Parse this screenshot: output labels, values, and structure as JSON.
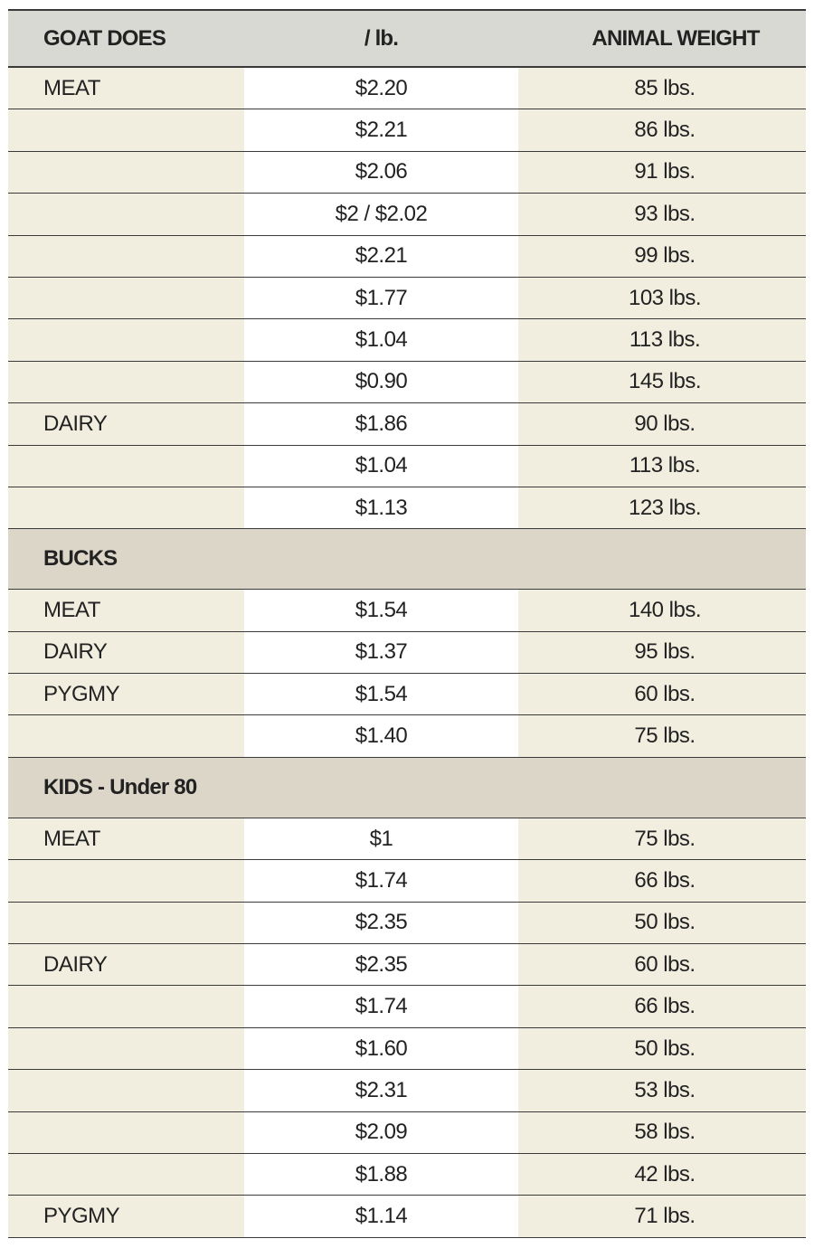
{
  "header": {
    "col1": "GOAT DOES",
    "col2": "/ lb.",
    "col3": "ANIMAL WEIGHT"
  },
  "sections": [
    {
      "title": "",
      "rows": [
        {
          "category": "MEAT",
          "price": "$2.20",
          "weight": "85 lbs."
        },
        {
          "category": "",
          "price": "$2.21",
          "weight": "86 lbs."
        },
        {
          "category": "",
          "price": "$2.06",
          "weight": "91 lbs."
        },
        {
          "category": "",
          "price": "$2 / $2.02",
          "weight": "93 lbs."
        },
        {
          "category": "",
          "price": "$2.21",
          "weight": "99 lbs."
        },
        {
          "category": "",
          "price": "$1.77",
          "weight": "103 lbs."
        },
        {
          "category": "",
          "price": "$1.04",
          "weight": "113 lbs."
        },
        {
          "category": "",
          "price": "$0.90",
          "weight": "145 lbs."
        },
        {
          "category": "DAIRY",
          "price": "$1.86",
          "weight": "90 lbs."
        },
        {
          "category": "",
          "price": "$1.04",
          "weight": "113 lbs."
        },
        {
          "category": "",
          "price": "$1.13",
          "weight": "123 lbs."
        }
      ]
    },
    {
      "title": "BUCKS",
      "rows": [
        {
          "category": "MEAT",
          "price": "$1.54",
          "weight": "140 lbs."
        },
        {
          "category": "DAIRY",
          "price": "$1.37",
          "weight": "95 lbs."
        },
        {
          "category": "PYGMY",
          "price": "$1.54",
          "weight": "60 lbs."
        },
        {
          "category": "",
          "price": "$1.40",
          "weight": "75 lbs."
        }
      ]
    },
    {
      "title": "KIDS - Under 80",
      "rows": [
        {
          "category": "MEAT",
          "price": "$1",
          "weight": "75 lbs."
        },
        {
          "category": "",
          "price": "$1.74",
          "weight": "66 lbs."
        },
        {
          "category": "",
          "price": "$2.35",
          "weight": "50 lbs."
        },
        {
          "category": "DAIRY",
          "price": "$2.35",
          "weight": "60 lbs."
        },
        {
          "category": "",
          "price": "$1.74",
          "weight": "66 lbs."
        },
        {
          "category": "",
          "price": "$1.60",
          "weight": "50 lbs."
        },
        {
          "category": "",
          "price": "$2.31",
          "weight": "53 lbs."
        },
        {
          "category": "",
          "price": "$2.09",
          "weight": "58 lbs."
        },
        {
          "category": "",
          "price": "$1.88",
          "weight": "42 lbs."
        },
        {
          "category": "PYGMY",
          "price": "$1.14",
          "weight": "71 lbs."
        }
      ]
    }
  ]
}
